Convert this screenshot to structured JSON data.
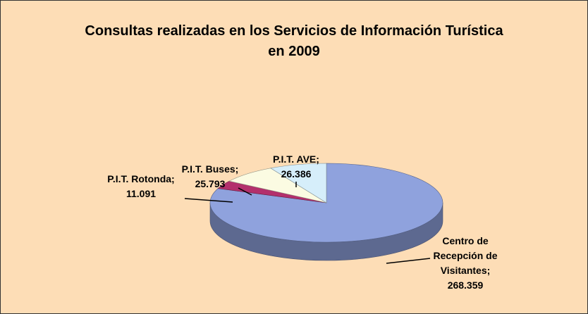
{
  "chart_data": {
    "type": "pie3d",
    "title": "Consultas realizadas en los Servicios de Información Turística en 2009",
    "categories": [
      "Centro de Recepción de Visitantes",
      "P.I.T. Rotonda",
      "P.I.T. Buses",
      "P.I.T. AVE"
    ],
    "values": [
      268359,
      11091,
      25793,
      26386
    ],
    "value_labels": [
      "268.359",
      "11.091",
      "25.793",
      "26.386"
    ],
    "label_separator": ";",
    "colors": [
      "#8fa2dd",
      "#b3306c",
      "#fbfbe2",
      "#d6eefa"
    ]
  }
}
